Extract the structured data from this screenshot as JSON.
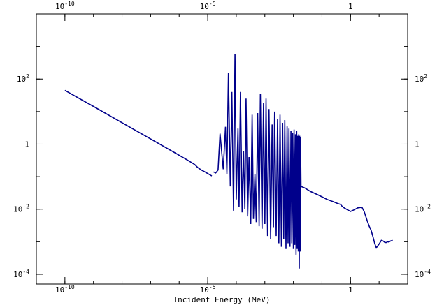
{
  "chart_data": {
    "type": "line",
    "title": "",
    "xlabel": "Incident Energy (MeV)",
    "ylabel": "",
    "x_scale": "log",
    "y_scale": "log",
    "xlim": [
      1e-11,
      100.0
    ],
    "ylim": [
      5e-05,
      10000.0
    ],
    "grid": false,
    "legend": "none",
    "x_ticks": [
      {
        "value": 1e-10,
        "base": "10",
        "exp": "-10"
      },
      {
        "value": 1e-05,
        "base": "10",
        "exp": "-5"
      },
      {
        "value": 1,
        "base": "1",
        "exp": ""
      }
    ],
    "y_ticks": [
      {
        "value": 100,
        "base": "10",
        "exp": "2"
      },
      {
        "value": 1,
        "base": "1",
        "exp": ""
      },
      {
        "value": 0.01,
        "base": "10",
        "exp": "-2"
      },
      {
        "value": 0.0001,
        "base": "10",
        "exp": "-4"
      }
    ],
    "line_color": "#00008b",
    "series": [
      {
        "x": [
          1e-10,
          1e-09,
          1e-08,
          1e-07,
          1e-06,
          2e-06,
          3.5e-06,
          4.5e-06,
          5e-06,
          6e-06,
          8e-06,
          1.4e-05
        ],
        "y": [
          45,
          14.4,
          4.55,
          1.44,
          0.455,
          0.32,
          0.236,
          0.19,
          0.178,
          0.16,
          0.14,
          0.105
        ]
      },
      {
        "x": [
          1.6e-05,
          1.9e-05,
          2.3e-05,
          2.7e-05,
          3.5e-05,
          4.2e-05,
          4.7e-05,
          5.3e-05,
          6.2e-05,
          7e-05,
          8e-05,
          9e-05,
          0.0001,
          0.000115,
          0.000125,
          0.00014,
          0.00016,
          0.00018,
          0.0002,
          0.00022,
          0.00025,
          0.00028,
          0.00032,
          0.00036,
          0.0004,
          0.00045,
          0.0005,
          0.00056,
          0.00063,
          0.0007,
          0.0008,
          0.0009,
          0.001,
          0.0011,
          0.00125,
          0.0014,
          0.0016,
          0.0018,
          0.002,
          0.0022,
          0.0025,
          0.0028,
          0.0031,
          0.0034,
          0.0038,
          0.0042,
          0.0046,
          0.005,
          0.0055,
          0.006,
          0.0065,
          0.007,
          0.0076,
          0.0082,
          0.0088,
          0.0094,
          0.01,
          0.0106,
          0.0112,
          0.0118,
          0.0124,
          0.013,
          0.0136,
          0.0142,
          0.0148,
          0.0154,
          0.016,
          0.0166,
          0.0172,
          0.0178,
          0.0185
        ],
        "y": [
          0.14,
          0.13,
          0.16,
          2.1,
          0.17,
          3.4,
          0.12,
          150,
          0.05,
          40,
          0.009,
          600,
          0.02,
          3.0,
          0.012,
          40,
          0.008,
          0.6,
          0.01,
          25,
          0.006,
          0.4,
          0.0035,
          8.0,
          0.005,
          0.12,
          0.004,
          9.0,
          0.003,
          35,
          0.0025,
          18,
          0.0035,
          25,
          0.0015,
          12,
          0.0012,
          4.0,
          0.0028,
          10,
          0.0015,
          6.0,
          0.0009,
          8.0,
          0.0007,
          4.5,
          0.0012,
          5.5,
          0.0006,
          3.5,
          0.0009,
          3.0,
          0.0007,
          2.5,
          0.0009,
          2.2,
          0.0006,
          2.8,
          0.0008,
          2.0,
          0.0004,
          2.5,
          0.0006,
          1.8,
          0.0005,
          2.0,
          0.00015,
          1.8,
          0.0005,
          1.6,
          0.05
        ]
      },
      {
        "x": [
          0.0185,
          0.025,
          0.04,
          0.07,
          0.1,
          0.15,
          0.25,
          0.35,
          0.45,
          0.5,
          0.6,
          0.8,
          1.0,
          1.3,
          1.8,
          2.5,
          3.0,
          3.8,
          4.5,
          5.2,
          6.0,
          7.0,
          8.0,
          10.0,
          12.0,
          14.0,
          16.0,
          18.0,
          20.0,
          22.0,
          25.0,
          30.0
        ],
        "y": [
          0.05,
          0.045,
          0.035,
          0.028,
          0.024,
          0.02,
          0.017,
          0.015,
          0.014,
          0.0125,
          0.011,
          0.0095,
          0.0085,
          0.0095,
          0.011,
          0.0115,
          0.0085,
          0.0045,
          0.003,
          0.0023,
          0.0015,
          0.0009,
          0.00065,
          0.00085,
          0.0011,
          0.00105,
          0.00095,
          0.00095,
          0.001,
          0.00098,
          0.00105,
          0.0011
        ]
      }
    ]
  }
}
